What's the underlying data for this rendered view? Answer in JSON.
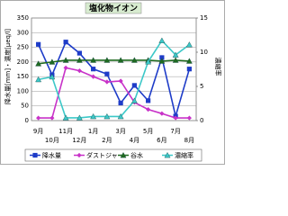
{
  "chart_data": {
    "type": "line",
    "title": "塩化物イオン",
    "y_label": "降水量[mm]・濃度[μeq/l]",
    "y2_label": "濃縮率",
    "categories": [
      "9月",
      "10月",
      "11月",
      "12月",
      "1月",
      "2月",
      "3月",
      "4月",
      "5月",
      "6月",
      "7月",
      "8月"
    ],
    "ylim": [
      0,
      350
    ],
    "yticks": [
      0,
      50,
      100,
      150,
      200,
      250,
      300,
      350
    ],
    "y2lim": [
      0,
      15
    ],
    "y2ticks": [
      0,
      5,
      10,
      15
    ],
    "grid": true,
    "series": [
      {
        "name": "降水量",
        "color": "#1e3cc8",
        "marker": "square",
        "values": [
          260,
          156,
          268,
          230,
          176,
          159,
          60,
          120,
          68,
          215,
          15,
          176
        ]
      },
      {
        "name": "ダストジャー",
        "color": "#c832c8",
        "marker": "diamond",
        "values": [
          9,
          9,
          180,
          170,
          150,
          132,
          135,
          62,
          38,
          24,
          9,
          9
        ]
      },
      {
        "name": "谷水",
        "color": "#1f6b1f",
        "marker": "triangle",
        "values": [
          194,
          200,
          206,
          206,
          206,
          206,
          206,
          206,
          206,
          203,
          206,
          203
        ]
      },
      {
        "name": "濃縮率",
        "color": "#3cc8c8",
        "marker": "triangle",
        "axis": "y2",
        "values": [
          6.0,
          6.4,
          0.4,
          0.4,
          0.6,
          0.6,
          0.6,
          2.9,
          8.6,
          11.7,
          9.6,
          11.1
        ]
      }
    ]
  }
}
